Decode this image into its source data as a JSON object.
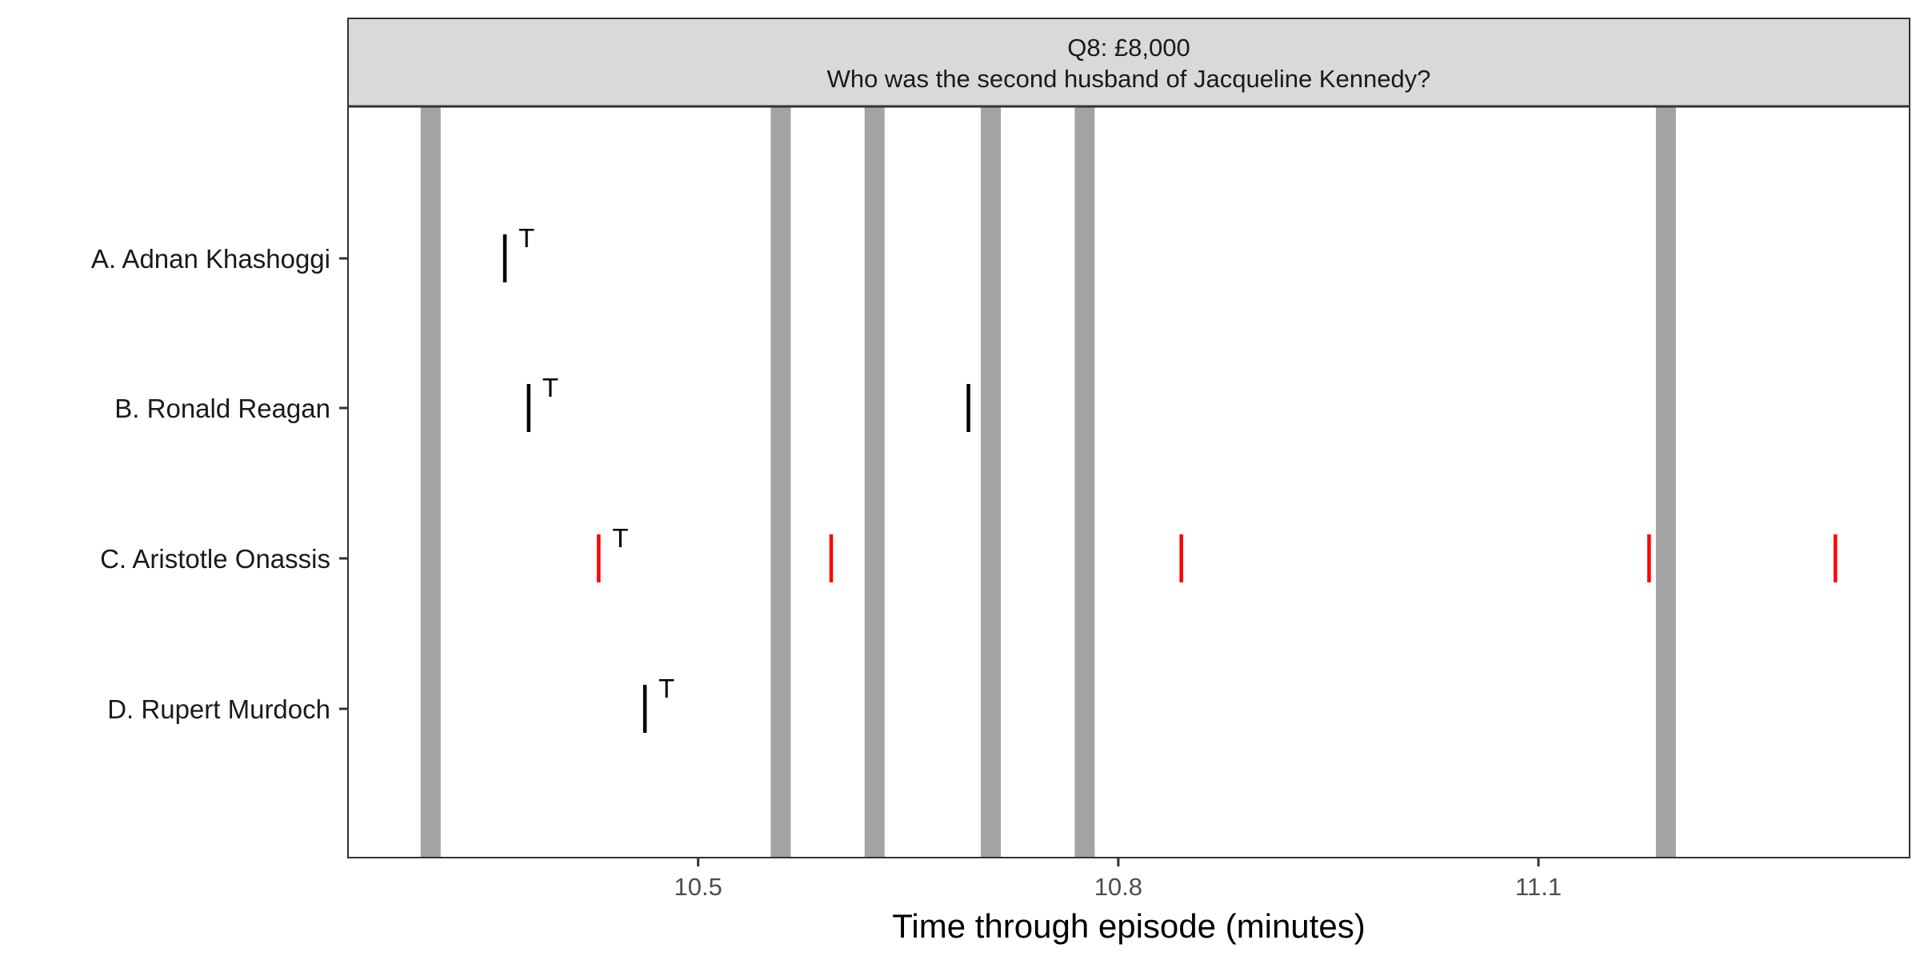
{
  "chart_data": {
    "type": "event-timeline",
    "strip": {
      "title_line1": "Q8: £8,000",
      "title_line2": "Who was the second husband of Jacqueline Kennedy?"
    },
    "xlabel": "Time through episode (minutes)",
    "ylabel": "",
    "xlim": [
      10.25,
      11.365
    ],
    "x_ticks": [
      10.5,
      10.8,
      11.1
    ],
    "x_tick_labels": [
      "10.5",
      "10.8",
      "11.1"
    ],
    "categories": [
      "A. Adnan Khashoggi",
      "B. Ronald Reagan",
      "C. Aristotle Onassis",
      "D. Rupert Murdoch"
    ],
    "highlight_band_times": [
      10.309,
      10.559,
      10.626,
      10.709,
      10.776,
      11.191
    ],
    "events": [
      {
        "category": "A. Adnan Khashoggi",
        "x": 10.362,
        "color": "#000000",
        "label": "T"
      },
      {
        "category": "B. Ronald Reagan",
        "x": 10.379,
        "color": "#000000",
        "label": "T"
      },
      {
        "category": "B. Ronald Reagan",
        "x": 10.693,
        "color": "#000000",
        "label": ""
      },
      {
        "category": "C. Aristotle Onassis",
        "x": 10.429,
        "color": "#ff0000",
        "label": "T"
      },
      {
        "category": "C. Aristotle Onassis",
        "x": 10.595,
        "color": "#ff0000",
        "label": ""
      },
      {
        "category": "C. Aristotle Onassis",
        "x": 10.845,
        "color": "#ff0000",
        "label": ""
      },
      {
        "category": "C. Aristotle Onassis",
        "x": 11.179,
        "color": "#ff0000",
        "label": ""
      },
      {
        "category": "C. Aristotle Onassis",
        "x": 11.312,
        "color": "#ff0000",
        "label": ""
      },
      {
        "category": "D. Rupert Murdoch",
        "x": 10.462,
        "color": "#000000",
        "label": "T"
      }
    ],
    "colors": {
      "band": "#a3a3a3",
      "strip_fill": "#d9d9d9",
      "correct_answer": "#ff0000",
      "other_answer": "#000000"
    },
    "grid": false,
    "legend": "none"
  }
}
